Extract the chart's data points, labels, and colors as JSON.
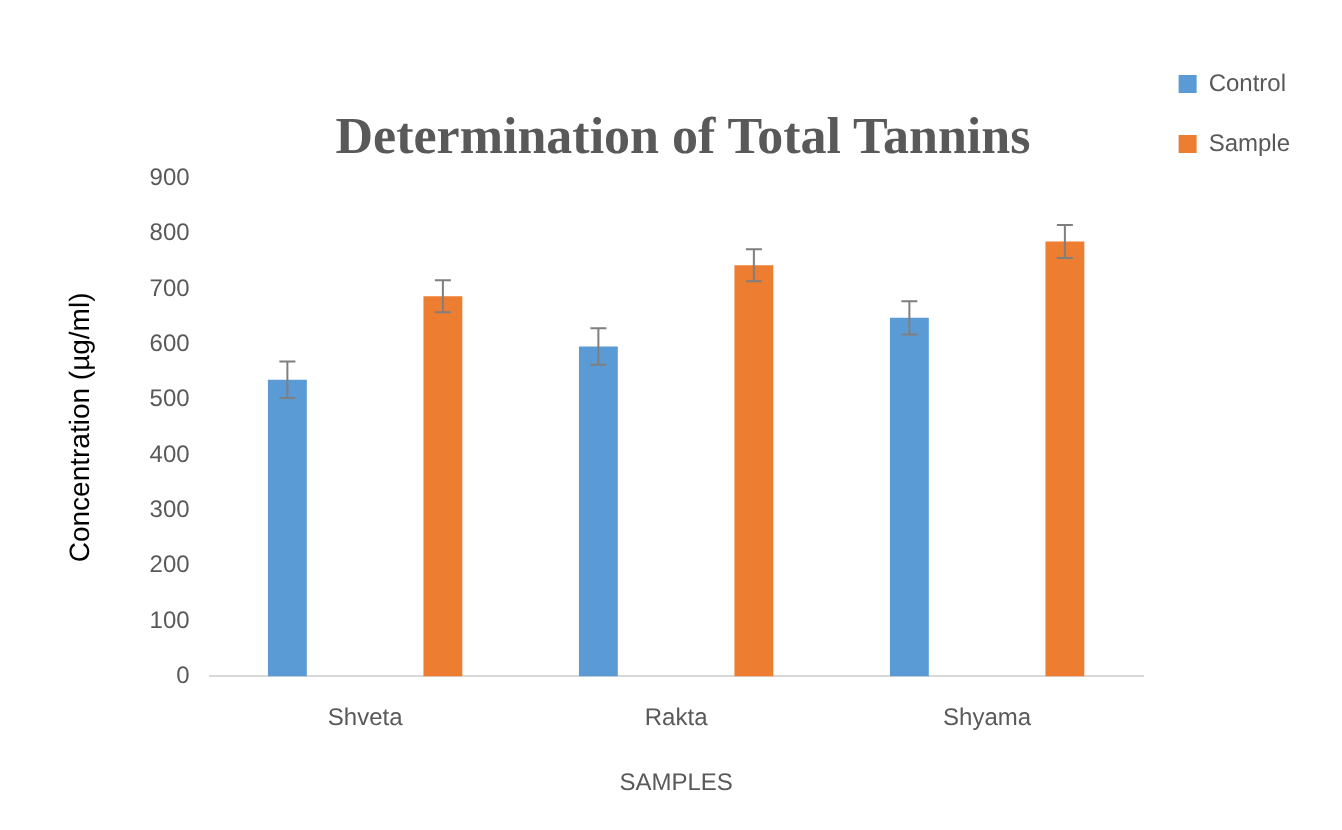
{
  "chart_data": {
    "type": "bar",
    "title": "Determination of Total Tannins",
    "xlabel": "SAMPLES",
    "ylabel": "Concentration (µg/ml)",
    "categories": [
      "Shveta",
      "Rakta",
      "Shyama"
    ],
    "series": [
      {
        "name": "Control",
        "color": "#5b9bd5",
        "values": [
          536,
          596,
          648
        ],
        "errors": [
          33,
          33,
          30
        ]
      },
      {
        "name": "Sample",
        "color": "#ed7d31",
        "values": [
          687,
          743,
          786
        ],
        "errors": [
          29,
          29,
          30
        ]
      }
    ],
    "ylim": [
      0,
      900
    ],
    "yticks": [
      0,
      100,
      200,
      300,
      400,
      500,
      600,
      700,
      800,
      900
    ],
    "grid": false,
    "legend": "top right"
  }
}
